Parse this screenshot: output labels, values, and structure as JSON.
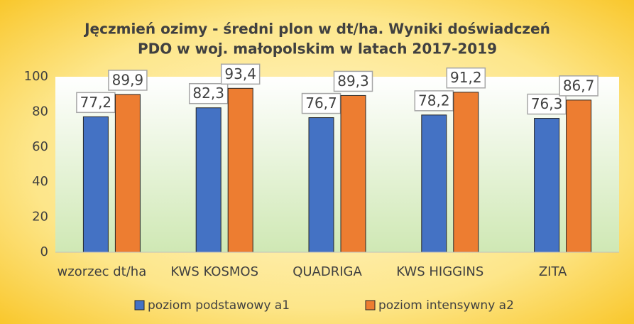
{
  "chart_data": {
    "type": "bar",
    "title": [
      "Jęczmień ozimy - średni plon w dt/ha. Wyniki doświadczeń",
      "PDO w woj. małopolskim w latach 2017-2019"
    ],
    "categories": [
      "wzorzec dt/ha",
      "KWS KOSMOS",
      "QUADRIGA",
      "KWS HIGGINS",
      "ZITA"
    ],
    "series": [
      {
        "name": "poziom podstawowy a1",
        "color": "#4472c4",
        "values": [
          77.2,
          82.3,
          76.7,
          78.2,
          76.3
        ],
        "value_labels": [
          "77,2",
          "82,3",
          "76,7",
          "78,2",
          "76,3"
        ]
      },
      {
        "name": "poziom intensywny a2",
        "color": "#ed7d31",
        "values": [
          89.9,
          93.4,
          89.3,
          91.2,
          86.7
        ],
        "value_labels": [
          "89,9",
          "93,4",
          "89,3",
          "91,2",
          "86,7"
        ]
      }
    ],
    "ylim": [
      0,
      100
    ],
    "yticks": [
      0,
      20,
      40,
      60,
      80,
      100
    ],
    "grid": false,
    "legend": "bottom"
  }
}
